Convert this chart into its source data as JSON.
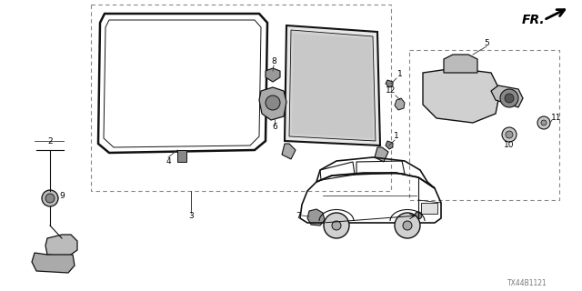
{
  "bg_color": "#ffffff",
  "dc": "#111111",
  "lc": "#555555",
  "fig_w": 6.4,
  "fig_h": 3.2,
  "dpi": 100,
  "watermark": "TX44B1121",
  "fr_text": "FR.",
  "label_fs": 6.5,
  "small_fs": 5.5
}
